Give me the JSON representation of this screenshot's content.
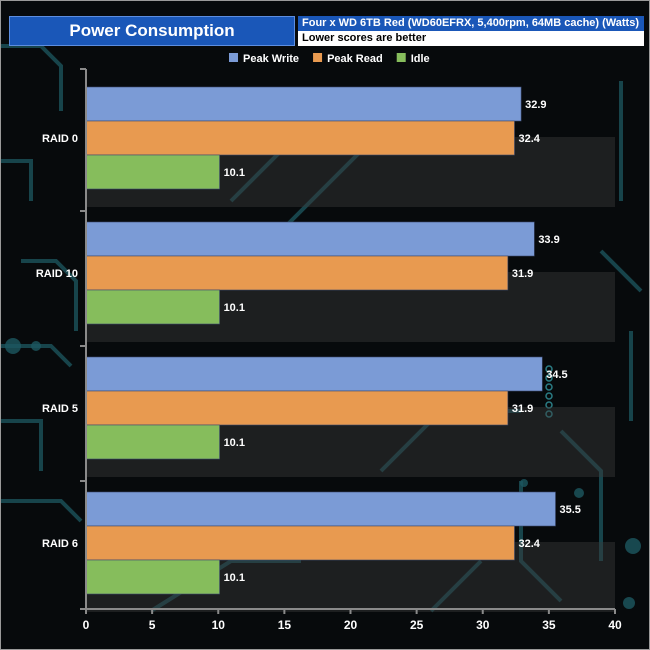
{
  "header": {
    "title": "Power Consumption",
    "subtitle": "Four x WD 6TB Red (WD60EFRX, 5,400rpm, 64MB cache)  (Watts)",
    "note": "Lower scores are better"
  },
  "chart_data": {
    "type": "bar",
    "orientation": "horizontal",
    "categories": [
      "RAID 0",
      "RAID 10",
      "RAID 5",
      "RAID 6"
    ],
    "series": [
      {
        "name": "Peak Write",
        "color": "#7b9bd6",
        "values": [
          32.9,
          33.9,
          34.5,
          35.5
        ]
      },
      {
        "name": "Peak Read",
        "color": "#e89a50",
        "values": [
          32.4,
          31.9,
          31.9,
          32.4
        ]
      },
      {
        "name": "Idle",
        "color": "#86bd5c",
        "values": [
          10.1,
          10.1,
          10.1,
          10.1
        ]
      }
    ],
    "xlim": [
      0,
      40
    ],
    "xticks": [
      0,
      5,
      10,
      15,
      20,
      25,
      30,
      35,
      40
    ],
    "title": "Power Consumption",
    "xlabel": "",
    "ylabel": "",
    "legend": "top"
  }
}
